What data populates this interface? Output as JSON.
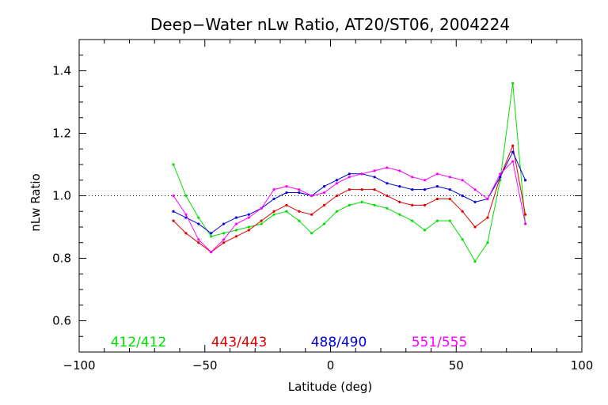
{
  "chart_data": {
    "type": "line",
    "title": "Deep−Water nLw Ratio, AT20/ST06, 2004224",
    "xlabel": "Latitude (deg)",
    "ylabel": "nLw Ratio",
    "xlim": [
      -100,
      100
    ],
    "ylim": [
      0.5,
      1.5
    ],
    "xticks": [
      -100,
      -50,
      0,
      50,
      100
    ],
    "xtick_labels": [
      "−100",
      "−50",
      "0",
      "50",
      "100"
    ],
    "yticks": [
      0.6,
      0.8,
      1.0,
      1.2,
      1.4
    ],
    "ytick_labels": [
      "0.6",
      "0.8",
      "1.0",
      "1.2",
      "1.4"
    ],
    "reference_line": 1.0,
    "grid": false,
    "legend_position": "bottom",
    "x": [
      -62.5,
      -57.5,
      -52.5,
      -47.5,
      -42.5,
      -37.5,
      -32.5,
      -27.5,
      -22.5,
      -17.5,
      -12.5,
      -7.5,
      -2.5,
      2.5,
      7.5,
      12.5,
      17.5,
      22.5,
      27.5,
      32.5,
      37.5,
      42.5,
      47.5,
      52.5,
      57.5,
      62.5,
      67.5,
      72.5,
      77.5
    ],
    "series": [
      {
        "name": "412/412",
        "color": "#00e000",
        "values": [
          1.1,
          1.0,
          0.93,
          0.87,
          0.88,
          0.89,
          0.9,
          0.91,
          0.94,
          0.95,
          0.92,
          0.88,
          0.91,
          0.95,
          0.97,
          0.98,
          0.97,
          0.96,
          0.94,
          0.92,
          0.89,
          0.92,
          0.92,
          0.86,
          0.79,
          0.85,
          1.05,
          1.36,
          0.91
        ]
      },
      {
        "name": "443/443",
        "color": "#e00000",
        "values": [
          0.92,
          0.88,
          0.85,
          0.82,
          0.85,
          0.87,
          0.89,
          0.92,
          0.95,
          0.97,
          0.95,
          0.94,
          0.97,
          1.0,
          1.02,
          1.02,
          1.02,
          1.0,
          0.98,
          0.97,
          0.97,
          0.99,
          0.99,
          0.95,
          0.9,
          0.93,
          1.06,
          1.16,
          0.94
        ]
      },
      {
        "name": "488/490",
        "color": "#0000e0",
        "values": [
          0.95,
          0.93,
          0.91,
          0.88,
          0.91,
          0.93,
          0.94,
          0.96,
          0.99,
          1.01,
          1.01,
          1.0,
          1.03,
          1.05,
          1.07,
          1.07,
          1.06,
          1.04,
          1.03,
          1.02,
          1.02,
          1.03,
          1.02,
          1.0,
          0.98,
          0.99,
          1.06,
          1.14,
          1.05
        ]
      },
      {
        "name": "551/555",
        "color": "#ff00ff",
        "values": [
          1.0,
          0.94,
          0.86,
          0.82,
          0.86,
          0.91,
          0.93,
          0.96,
          1.02,
          1.03,
          1.02,
          1.0,
          1.01,
          1.04,
          1.06,
          1.07,
          1.08,
          1.09,
          1.08,
          1.06,
          1.05,
          1.07,
          1.06,
          1.05,
          1.02,
          0.99,
          1.07,
          1.11,
          0.91
        ]
      }
    ]
  }
}
